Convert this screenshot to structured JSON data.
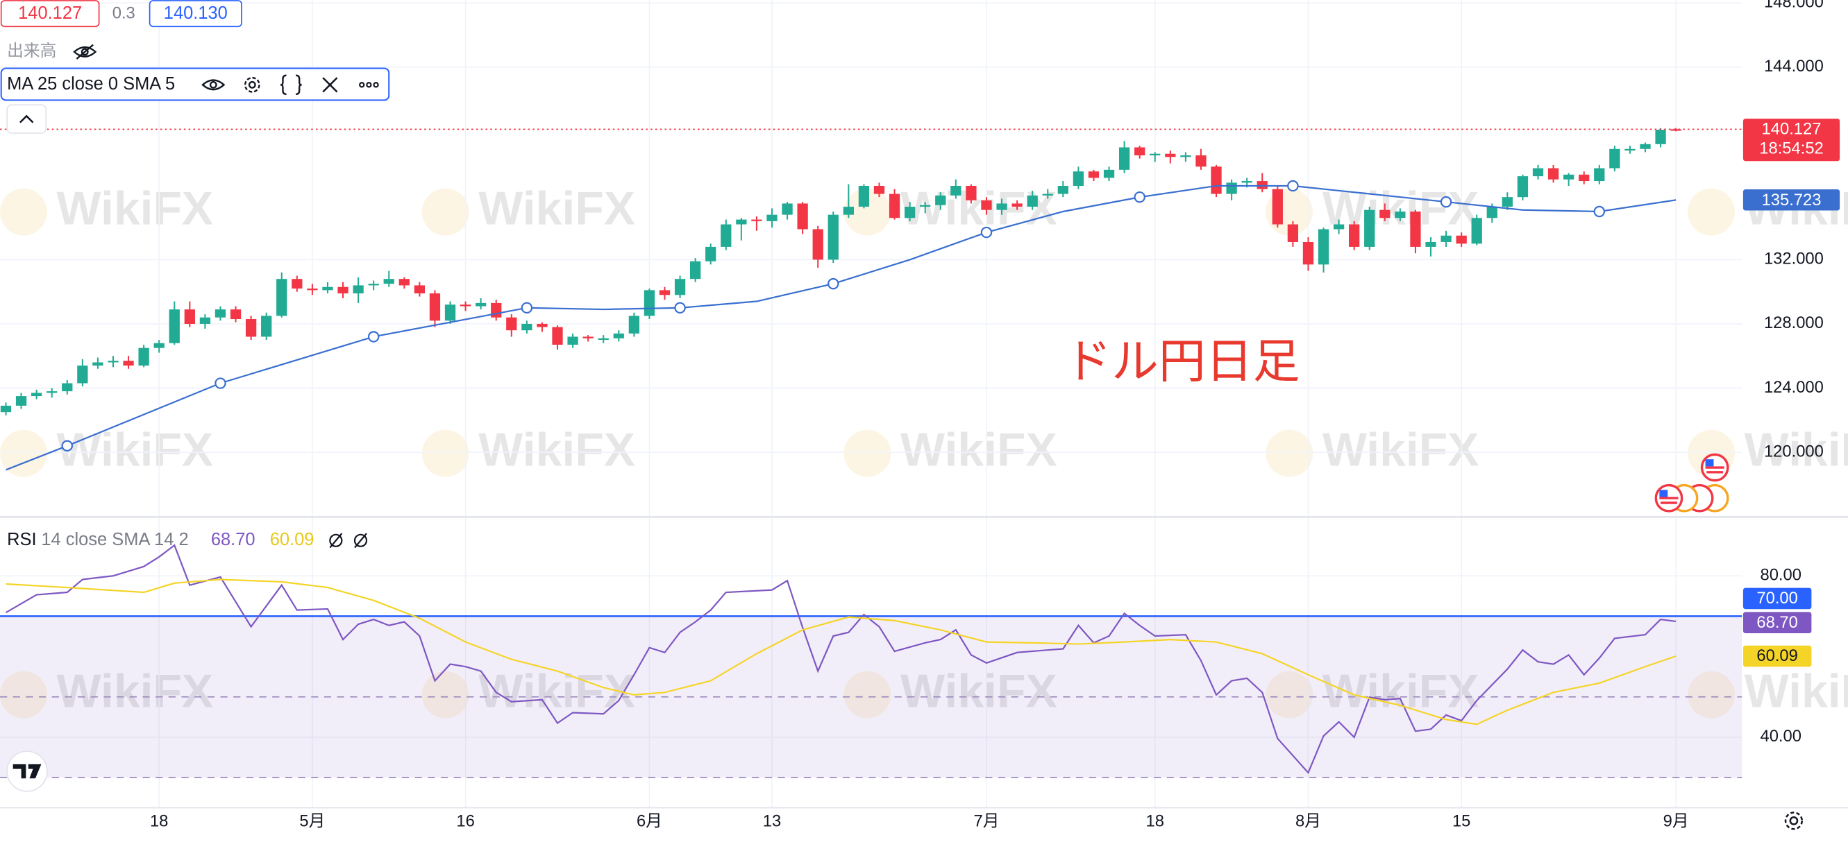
{
  "toolbar": {
    "bid": "140.127",
    "spread": "0.3",
    "ask": "140.130",
    "volume_label": "出来高"
  },
  "watermark": "WikiFX",
  "chart_data": [
    {
      "type": "candlestick",
      "annotation": "ドル円日足",
      "up_color": "#22ab94",
      "down_color": "#f23645",
      "categories": [
        null,
        null,
        null,
        null,
        null,
        null,
        null,
        null,
        null,
        null,
        "18",
        null,
        null,
        null,
        null,
        null,
        null,
        null,
        null,
        null,
        "5月",
        null,
        null,
        null,
        null,
        null,
        null,
        null,
        null,
        null,
        "16",
        null,
        null,
        null,
        null,
        null,
        null,
        null,
        null,
        null,
        null,
        null,
        "6月",
        null,
        null,
        null,
        null,
        null,
        null,
        null,
        "13",
        null,
        null,
        null,
        null,
        null,
        null,
        null,
        null,
        null,
        null,
        null,
        null,
        null,
        "7月",
        null,
        null,
        null,
        null,
        null,
        null,
        null,
        null,
        null,
        null,
        "18",
        null,
        null,
        null,
        null,
        null,
        null,
        null,
        null,
        null,
        "8月",
        null,
        null,
        null,
        null,
        null,
        null,
        null,
        null,
        null,
        "15",
        null,
        null,
        null,
        null,
        null,
        null,
        null,
        null,
        null,
        null,
        null,
        null,
        null,
        "9月",
        null
      ],
      "ohlc": [
        [
          122.5,
          123.1,
          122.3,
          122.9
        ],
        [
          122.9,
          123.7,
          122.7,
          123.5
        ],
        [
          123.5,
          123.9,
          123.3,
          123.7
        ],
        [
          123.7,
          124.0,
          123.4,
          123.8
        ],
        [
          123.8,
          124.5,
          123.6,
          124.3
        ],
        [
          124.3,
          125.8,
          124.1,
          125.4
        ],
        [
          125.4,
          125.9,
          125.2,
          125.6
        ],
        [
          125.6,
          126.0,
          125.3,
          125.7
        ],
        [
          125.7,
          126.0,
          125.2,
          125.4
        ],
        [
          125.4,
          126.7,
          125.3,
          126.5
        ],
        [
          126.5,
          127.0,
          126.2,
          126.8
        ],
        [
          126.8,
          129.4,
          126.7,
          128.9
        ],
        [
          128.9,
          129.4,
          127.8,
          128.0
        ],
        [
          128.0,
          128.6,
          127.7,
          128.4
        ],
        [
          128.4,
          129.1,
          128.2,
          128.9
        ],
        [
          128.9,
          129.1,
          128.1,
          128.3
        ],
        [
          128.3,
          128.5,
          127.0,
          127.2
        ],
        [
          127.2,
          128.7,
          127.0,
          128.5
        ],
        [
          128.5,
          131.2,
          128.4,
          130.8
        ],
        [
          130.8,
          131.0,
          130.0,
          130.2
        ],
        [
          130.2,
          130.5,
          129.8,
          130.1
        ],
        [
          130.1,
          130.6,
          129.9,
          130.3
        ],
        [
          130.3,
          130.6,
          129.6,
          129.9
        ],
        [
          129.9,
          130.9,
          129.3,
          130.4
        ],
        [
          130.4,
          130.7,
          130.1,
          130.5
        ],
        [
          130.5,
          131.3,
          130.3,
          130.8
        ],
        [
          130.8,
          130.9,
          130.2,
          130.4
        ],
        [
          130.4,
          130.6,
          129.7,
          129.9
        ],
        [
          129.9,
          130.1,
          127.8,
          128.2
        ],
        [
          128.2,
          129.4,
          128.0,
          129.2
        ],
        [
          129.2,
          129.4,
          128.8,
          129.1
        ],
        [
          129.1,
          129.6,
          128.9,
          129.3
        ],
        [
          129.3,
          129.5,
          128.2,
          128.4
        ],
        [
          128.4,
          128.6,
          127.2,
          127.6
        ],
        [
          127.6,
          128.2,
          127.4,
          128.0
        ],
        [
          128.0,
          128.1,
          127.5,
          127.8
        ],
        [
          127.8,
          127.9,
          126.4,
          126.7
        ],
        [
          126.7,
          127.4,
          126.5,
          127.2
        ],
        [
          127.2,
          127.3,
          126.9,
          127.1
        ],
        [
          127.1,
          127.3,
          126.8,
          127.1
        ],
        [
          127.1,
          127.6,
          126.9,
          127.4
        ],
        [
          127.4,
          128.7,
          127.2,
          128.5
        ],
        [
          128.5,
          130.2,
          128.3,
          130.1
        ],
        [
          130.1,
          130.3,
          129.5,
          129.8
        ],
        [
          129.8,
          131.0,
          129.6,
          130.8
        ],
        [
          130.8,
          132.1,
          130.6,
          131.9
        ],
        [
          131.9,
          133.0,
          131.7,
          132.8
        ],
        [
          132.8,
          134.5,
          132.6,
          134.2
        ],
        [
          134.2,
          134.6,
          133.2,
          134.5
        ],
        [
          134.5,
          134.7,
          133.8,
          134.4
        ],
        [
          134.4,
          135.2,
          134.0,
          134.8
        ],
        [
          134.8,
          135.6,
          134.5,
          135.5
        ],
        [
          135.5,
          135.6,
          133.6,
          133.9
        ],
        [
          133.9,
          134.1,
          131.5,
          132.0
        ],
        [
          132.0,
          135.0,
          131.8,
          134.8
        ],
        [
          134.8,
          136.7,
          134.6,
          135.3
        ],
        [
          135.3,
          136.7,
          135.2,
          136.6
        ],
        [
          136.6,
          136.8,
          135.9,
          136.1
        ],
        [
          136.1,
          136.4,
          134.5,
          134.6
        ],
        [
          134.6,
          135.6,
          134.4,
          135.3
        ],
        [
          135.3,
          135.6,
          134.9,
          135.4
        ],
        [
          135.4,
          136.2,
          135.1,
          136.0
        ],
        [
          136.0,
          137.0,
          135.8,
          136.6
        ],
        [
          136.6,
          136.7,
          135.5,
          135.7
        ],
        [
          135.7,
          135.9,
          134.8,
          135.1
        ],
        [
          135.1,
          135.8,
          134.8,
          135.5
        ],
        [
          135.5,
          135.7,
          135.1,
          135.3
        ],
        [
          135.3,
          136.3,
          135.1,
          136.0
        ],
        [
          136.0,
          136.4,
          135.8,
          136.1
        ],
        [
          136.1,
          136.9,
          135.9,
          136.6
        ],
        [
          136.6,
          137.8,
          136.4,
          137.5
        ],
        [
          137.5,
          137.6,
          136.9,
          137.1
        ],
        [
          137.1,
          137.8,
          136.9,
          137.6
        ],
        [
          137.6,
          139.4,
          137.4,
          139.0
        ],
        [
          139.0,
          139.1,
          138.3,
          138.5
        ],
        [
          138.5,
          138.7,
          138.1,
          138.6
        ],
        [
          138.6,
          138.8,
          138.0,
          138.4
        ],
        [
          138.4,
          138.7,
          138.1,
          138.5
        ],
        [
          138.5,
          138.9,
          137.6,
          137.8
        ],
        [
          137.8,
          137.9,
          135.9,
          136.1
        ],
        [
          136.1,
          137.0,
          135.7,
          136.8
        ],
        [
          136.8,
          137.1,
          136.5,
          136.9
        ],
        [
          136.9,
          137.4,
          136.2,
          136.4
        ],
        [
          136.4,
          136.6,
          134.0,
          134.2
        ],
        [
          134.2,
          134.4,
          132.8,
          133.1
        ],
        [
          133.1,
          133.4,
          131.3,
          131.7
        ],
        [
          131.7,
          134.0,
          131.2,
          133.9
        ],
        [
          133.9,
          134.5,
          133.6,
          134.2
        ],
        [
          134.2,
          134.4,
          132.6,
          132.8
        ],
        [
          132.8,
          135.3,
          132.6,
          135.1
        ],
        [
          135.1,
          135.5,
          134.4,
          134.6
        ],
        [
          134.6,
          135.2,
          134.4,
          135.0
        ],
        [
          135.0,
          135.1,
          132.4,
          132.8
        ],
        [
          132.8,
          133.4,
          132.2,
          133.1
        ],
        [
          133.1,
          133.8,
          132.8,
          133.5
        ],
        [
          133.5,
          133.7,
          132.8,
          133.0
        ],
        [
          133.0,
          134.8,
          132.9,
          134.6
        ],
        [
          134.6,
          135.5,
          134.3,
          135.3
        ],
        [
          135.3,
          136.2,
          135.1,
          135.9
        ],
        [
          135.9,
          137.3,
          135.7,
          137.2
        ],
        [
          137.2,
          137.9,
          137.0,
          137.7
        ],
        [
          137.7,
          137.9,
          136.8,
          137.0
        ],
        [
          137.0,
          137.4,
          136.6,
          137.3
        ],
        [
          137.3,
          137.5,
          136.7,
          136.9
        ],
        [
          136.9,
          137.9,
          136.7,
          137.7
        ],
        [
          137.7,
          139.1,
          137.5,
          138.9
        ],
        [
          138.9,
          139.1,
          138.6,
          138.9
        ],
        [
          138.9,
          139.3,
          138.7,
          139.2
        ],
        [
          139.2,
          140.2,
          139.0,
          140.1
        ],
        [
          140.13,
          140.2,
          140.0,
          140.127
        ]
      ],
      "series": [
        {
          "name": "MA 25 close 0 SMA 5",
          "color": "#3a6fd0",
          "x": [
            0,
            4,
            14,
            24,
            34,
            39,
            44,
            49,
            54,
            59,
            64,
            69,
            74,
            79,
            84,
            89,
            94,
            99,
            104,
            109
          ],
          "values": [
            118.9,
            120.4,
            124.3,
            127.2,
            129.0,
            128.9,
            129.0,
            129.4,
            130.5,
            132.0,
            133.7,
            135.0,
            135.9,
            136.6,
            136.6,
            136.1,
            135.6,
            135.1,
            135.0,
            135.723
          ]
        }
      ],
      "last_price": 140.127,
      "countdown": "18:54:52",
      "ylim": [
        116.04,
        148.18
      ],
      "yticks": [
        {
          "value": 148,
          "label": "148.000"
        },
        {
          "value": 144,
          "label": "144.000"
        },
        {
          "value": 132,
          "label": "132.000"
        },
        {
          "value": 128,
          "label": "128.000"
        },
        {
          "value": 124,
          "label": "124.000"
        },
        {
          "value": 120,
          "label": "120.000"
        }
      ],
      "grid": true
    },
    {
      "type": "line",
      "legend_title": "RSI",
      "legend_params": "14 close SMA 14 2",
      "ylim": [
        22.8,
        94.3
      ],
      "yticks": [
        {
          "value": 80,
          "label": "80.00"
        },
        {
          "value": 40,
          "label": "40.00"
        }
      ],
      "bands": {
        "upper": {
          "value": 70,
          "label": "70.00"
        },
        "middle": 50,
        "lower": 30
      },
      "band_color": "#7e57c2",
      "series": [
        {
          "color": "#7e57c2",
          "last_value_label": "68.70",
          "x": [
            0,
            2,
            4,
            5,
            7,
            9,
            10,
            11,
            12,
            14,
            16,
            18,
            19,
            21,
            22,
            23,
            24,
            25,
            26,
            27,
            28,
            29,
            30,
            31,
            32,
            33,
            35,
            36,
            37,
            39,
            40,
            41,
            42,
            43,
            44,
            45,
            46,
            47,
            50,
            51,
            52,
            53,
            54,
            55,
            56,
            57,
            58,
            60,
            61,
            62,
            63,
            64,
            66,
            68,
            69,
            70,
            71,
            72,
            73,
            74,
            75,
            77,
            78,
            79,
            80,
            81,
            82,
            83,
            85,
            86,
            87,
            88,
            89,
            90,
            91,
            92,
            93,
            94,
            95,
            96,
            98,
            99,
            100,
            101,
            102,
            103,
            104,
            105,
            107,
            108,
            109
          ],
          "values": [
            70.9,
            75.3,
            75.9,
            79.1,
            80.0,
            82.3,
            84.7,
            87.6,
            77.7,
            79.7,
            67.4,
            77.7,
            71.5,
            71.8,
            64.2,
            68.0,
            69.2,
            67.7,
            68.6,
            65.1,
            54.0,
            58.1,
            57.5,
            56.4,
            51.1,
            48.8,
            49.3,
            43.5,
            46.1,
            45.8,
            49.1,
            55.5,
            62.2,
            61.0,
            66.0,
            68.6,
            71.5,
            75.9,
            76.5,
            78.8,
            67.2,
            56.4,
            65.1,
            66.0,
            70.4,
            67.4,
            61.3,
            63.4,
            64.2,
            66.6,
            60.4,
            58.4,
            61.0,
            61.6,
            61.9,
            67.7,
            63.4,
            65.1,
            70.7,
            67.7,
            65.1,
            65.4,
            59.0,
            50.5,
            54.0,
            54.6,
            51.1,
            39.7,
            31.2,
            40.3,
            43.8,
            40.0,
            49.9,
            49.3,
            49.6,
            41.5,
            42.0,
            45.5,
            44.1,
            49.1,
            56.9,
            61.6,
            58.7,
            58.1,
            60.4,
            55.5,
            59.6,
            64.5,
            65.4,
            69.2,
            68.7
          ]
        },
        {
          "color": "#f5d428",
          "x": [
            0,
            4,
            9,
            11,
            14,
            18,
            21,
            24,
            27,
            30,
            33,
            36,
            39,
            41,
            43,
            46,
            49,
            52,
            55,
            58,
            61,
            64,
            67,
            70,
            73,
            76,
            79,
            82,
            85,
            88,
            91,
            94,
            96,
            98,
            101,
            104,
            107,
            109
          ],
          "values": [
            78.0,
            77.1,
            75.9,
            78.2,
            79.1,
            78.5,
            77.1,
            73.9,
            69.5,
            63.6,
            59.3,
            56.4,
            52.3,
            50.5,
            51.1,
            54.0,
            60.7,
            66.6,
            69.8,
            68.9,
            66.6,
            63.6,
            63.4,
            63.1,
            63.6,
            64.2,
            63.6,
            60.7,
            55.5,
            50.5,
            47.9,
            44.4,
            43.2,
            46.7,
            51.1,
            53.4,
            57.5,
            60.09
          ]
        }
      ]
    }
  ]
}
